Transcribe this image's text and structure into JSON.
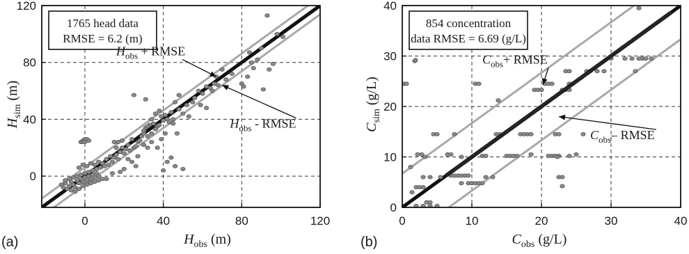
{
  "chart_data": [
    {
      "type": "scatter",
      "panel_label": "(a)",
      "xlabel": {
        "main": "H",
        "sub": "obs",
        "unit": " (m)"
      },
      "ylabel": {
        "main": "H",
        "sub": "sim",
        "unit": "(m)"
      },
      "xlim": [
        -22,
        120
      ],
      "ylim": [
        -22,
        120
      ],
      "xticks": [
        0,
        40,
        80,
        120
      ],
      "yticks": [
        0,
        40,
        80,
        120
      ],
      "grid": true,
      "info_box": [
        "1765 head data",
        "RMSE = 6.2 (m)"
      ],
      "rmse": 6.2,
      "series": [
        {
          "name": "H_obs + RMSE",
          "type": "line",
          "offset": 6.2,
          "color": "#a8a8a8"
        },
        {
          "name": "H_obs",
          "type": "line",
          "offset": 0,
          "color": "#111111"
        },
        {
          "name": "H_obs - RMSE",
          "type": "line",
          "offset": -6.2,
          "color": "#a8a8a8"
        }
      ],
      "annotations": [
        {
          "main": "H",
          "sub": "obs",
          "rest": " + RMSE",
          "text_at": [
            16,
            85
          ],
          "arrow_to": [
            67,
            70
          ]
        },
        {
          "main": "H",
          "sub": "obs",
          "rest": " - RMSE",
          "text_at": [
            74,
            34
          ],
          "arrow_to": [
            70,
            64
          ]
        }
      ],
      "points": [
        [
          -12,
          -6
        ],
        [
          -11,
          -8
        ],
        [
          -10,
          -5
        ],
        [
          -9,
          -9
        ],
        [
          -8,
          -7
        ],
        [
          -7,
          -4
        ],
        [
          -6,
          -6
        ],
        [
          -5,
          -8
        ],
        [
          -4,
          -3
        ],
        [
          -3,
          -5
        ],
        [
          -2,
          -2
        ],
        [
          -1,
          -4
        ],
        [
          0,
          -1
        ],
        [
          1,
          -3
        ],
        [
          2,
          0
        ],
        [
          3,
          -2
        ],
        [
          4,
          1
        ],
        [
          5,
          -1
        ],
        [
          6,
          2
        ],
        [
          7,
          0
        ],
        [
          -10,
          -3
        ],
        [
          -8,
          -2
        ],
        [
          -6,
          -1
        ],
        [
          -4,
          0
        ],
        [
          -2,
          1
        ],
        [
          0,
          2
        ],
        [
          2,
          3
        ],
        [
          4,
          4
        ],
        [
          6,
          5
        ],
        [
          8,
          6
        ],
        [
          10,
          7
        ],
        [
          -7,
          -10
        ],
        [
          -5,
          -11
        ],
        [
          -3,
          -9
        ],
        [
          -1,
          -7
        ],
        [
          1,
          -6
        ],
        [
          3,
          -5
        ],
        [
          5,
          -4
        ],
        [
          7,
          -3
        ],
        [
          9,
          -2
        ],
        [
          -2,
          24
        ],
        [
          -1,
          25
        ],
        [
          0,
          26
        ],
        [
          1,
          25
        ],
        [
          -1,
          24
        ],
        [
          0,
          24
        ],
        [
          1,
          26
        ],
        [
          2,
          25
        ],
        [
          -3,
          6
        ],
        [
          -1,
          8
        ],
        [
          1,
          7
        ],
        [
          3,
          9
        ],
        [
          5,
          8
        ],
        [
          7,
          10
        ],
        [
          9,
          9
        ],
        [
          11,
          12
        ],
        [
          13,
          14
        ],
        [
          15,
          13
        ],
        [
          12,
          8
        ],
        [
          14,
          10
        ],
        [
          16,
          15
        ],
        [
          18,
          17
        ],
        [
          17,
          12
        ],
        [
          19,
          20
        ],
        [
          15,
          24
        ],
        [
          17,
          24
        ],
        [
          19,
          25
        ],
        [
          16,
          20
        ],
        [
          21,
          19
        ],
        [
          22,
          22
        ],
        [
          24,
          26
        ],
        [
          20,
          16
        ],
        [
          23,
          18
        ],
        [
          25,
          20
        ],
        [
          27,
          24
        ],
        [
          26,
          21
        ],
        [
          29,
          28
        ],
        [
          28,
          25
        ],
        [
          30,
          30
        ],
        [
          32,
          28
        ],
        [
          31,
          34
        ],
        [
          33,
          36
        ],
        [
          35,
          37
        ],
        [
          37,
          35
        ],
        [
          34,
          30
        ],
        [
          36,
          33
        ],
        [
          38,
          36
        ],
        [
          40,
          39
        ],
        [
          39,
          42
        ],
        [
          41,
          43
        ],
        [
          42,
          40
        ],
        [
          44,
          45
        ],
        [
          43,
          38
        ],
        [
          45,
          37
        ],
        [
          46,
          52
        ],
        [
          48,
          47
        ],
        [
          30,
          32
        ],
        [
          32,
          35
        ],
        [
          34,
          40
        ],
        [
          36,
          44
        ],
        [
          38,
          46
        ],
        [
          27,
          14
        ],
        [
          30,
          22
        ],
        [
          32,
          20
        ],
        [
          34,
          24
        ],
        [
          22,
          12
        ],
        [
          24,
          10
        ],
        [
          26,
          7
        ],
        [
          20,
          5
        ],
        [
          18,
          3
        ],
        [
          14,
          2
        ],
        [
          11,
          -2
        ],
        [
          40,
          4
        ],
        [
          42,
          10
        ],
        [
          44,
          13
        ],
        [
          46,
          7
        ],
        [
          50,
          5
        ],
        [
          37,
          20
        ],
        [
          39,
          26
        ],
        [
          41,
          30
        ],
        [
          48,
          57
        ],
        [
          52,
          50
        ],
        [
          55,
          52
        ],
        [
          58,
          60
        ],
        [
          60,
          58
        ],
        [
          62,
          63
        ],
        [
          64,
          62
        ],
        [
          66,
          65
        ],
        [
          25,
          57
        ],
        [
          31,
          54
        ],
        [
          45,
          40
        ],
        [
          47,
          30
        ],
        [
          50,
          44
        ],
        [
          53,
          42
        ],
        [
          56,
          55
        ],
        [
          59,
          50
        ],
        [
          62,
          48
        ],
        [
          65,
          60
        ],
        [
          67,
          70
        ],
        [
          70,
          75
        ],
        [
          72,
          68
        ],
        [
          80,
          65
        ],
        [
          81,
          63
        ],
        [
          84,
          87
        ],
        [
          86,
          76
        ],
        [
          88,
          82
        ],
        [
          90,
          90
        ],
        [
          91,
          61
        ],
        [
          93,
          113
        ],
        [
          94,
          75
        ],
        [
          96,
          79
        ],
        [
          98,
          100
        ],
        [
          101,
          98
        ],
        [
          85,
          80
        ],
        [
          83,
          70
        ],
        [
          75,
          72
        ],
        [
          68,
          64
        ]
      ]
    },
    {
      "type": "scatter",
      "panel_label": "(b)",
      "xlabel": {
        "main": "C",
        "sub": "obs",
        "unit": " (g/L)"
      },
      "ylabel": {
        "main": "C",
        "sub": "sim",
        "unit": " (g/L)"
      },
      "xlim": [
        0,
        40
      ],
      "ylim": [
        0,
        40
      ],
      "xticks": [
        0,
        10,
        20,
        30,
        40
      ],
      "yticks": [
        0,
        10,
        20,
        30,
        40
      ],
      "grid": true,
      "info_box": [
        "854 concentration",
        "data RMSE = 6.69 (g/L)"
      ],
      "rmse": 6.69,
      "series": [
        {
          "name": "C_obs + RMSE",
          "type": "line",
          "offset": 6.69,
          "color": "#a8a8a8"
        },
        {
          "name": "C_obs",
          "type": "line",
          "offset": 0,
          "color": "#111111"
        },
        {
          "name": "C_obs - RMSE",
          "type": "line",
          "offset": -6.69,
          "color": "#a8a8a8"
        }
      ],
      "annotations": [
        {
          "main": "C",
          "sub": "obs",
          "rest": "+ RMSE",
          "text_at": [
            11.5,
            28.5
          ],
          "arrow_to": [
            20.2,
            24.3
          ]
        },
        {
          "main": "C",
          "sub": "obs",
          "rest": "– RMSE",
          "text_at": [
            27,
            13.5
          ],
          "arrow_to": [
            22.5,
            18
          ]
        }
      ],
      "points": [
        [
          0.3,
          24.5
        ],
        [
          0.6,
          24.5
        ],
        [
          1.8,
          29
        ],
        [
          1.9,
          29.2
        ],
        [
          1.2,
          8
        ],
        [
          1.4,
          3
        ],
        [
          2,
          4
        ],
        [
          2.5,
          4
        ],
        [
          3,
          4
        ],
        [
          2.2,
          10.5
        ],
        [
          2.8,
          10.5
        ],
        [
          3.3,
          10
        ],
        [
          3,
          6
        ],
        [
          4,
          6
        ],
        [
          4.5,
          14.5
        ],
        [
          5,
          14.5
        ],
        [
          5.5,
          6
        ],
        [
          3.5,
          1
        ],
        [
          4,
          1
        ],
        [
          2,
          0.3
        ],
        [
          3,
          0.3
        ],
        [
          4,
          0.3
        ],
        [
          5,
          0.3
        ],
        [
          6.5,
          10.5
        ],
        [
          7,
          10.5
        ],
        [
          7.5,
          14.5
        ],
        [
          7,
          6.3
        ],
        [
          7.5,
          6.3
        ],
        [
          8,
          6.3
        ],
        [
          8.5,
          6.3
        ],
        [
          9,
          6.3
        ],
        [
          9.5,
          6.3
        ],
        [
          8.5,
          10
        ],
        [
          8.5,
          4.8
        ],
        [
          9.5,
          4.8
        ],
        [
          10,
          4.8
        ],
        [
          10.5,
          4.8
        ],
        [
          11,
          4.8
        ],
        [
          11.5,
          4.8
        ],
        [
          10.5,
          24.5
        ],
        [
          11,
          24.5
        ],
        [
          11.5,
          10.2
        ],
        [
          12,
          10.2
        ],
        [
          12,
          6
        ],
        [
          13,
          6
        ],
        [
          13.5,
          14.5
        ],
        [
          14,
          14.5
        ],
        [
          13.8,
          21.2
        ],
        [
          15,
          10.2
        ],
        [
          15.5,
          10.2
        ],
        [
          16,
          10.2
        ],
        [
          16.5,
          10.2
        ],
        [
          17,
          14.5
        ],
        [
          17.5,
          14.5
        ],
        [
          18,
          14.5
        ],
        [
          18.5,
          14.5
        ],
        [
          18.5,
          10.5
        ],
        [
          19,
          23.3
        ],
        [
          19.5,
          23.3
        ],
        [
          20,
          23.3
        ],
        [
          20.5,
          24.5
        ],
        [
          21,
          24.5
        ],
        [
          21.5,
          24.5
        ],
        [
          21,
          10.2
        ],
        [
          21.5,
          10.2
        ],
        [
          22,
          10.2
        ],
        [
          22.5,
          10.2
        ],
        [
          22,
          14.5
        ],
        [
          22.5,
          14.5
        ],
        [
          23,
          23.3
        ],
        [
          23.5,
          23.3
        ],
        [
          24,
          23.3
        ],
        [
          23.5,
          27
        ],
        [
          24,
          27
        ],
        [
          24,
          24.5
        ],
        [
          24.5,
          24.5
        ],
        [
          22.5,
          6
        ],
        [
          23,
          6
        ],
        [
          22.3,
          10
        ],
        [
          23,
          4.2
        ],
        [
          24,
          10.2
        ],
        [
          25,
          10.5
        ],
        [
          26,
          14.5
        ],
        [
          26.5,
          27
        ],
        [
          27,
          27
        ],
        [
          28,
          27
        ],
        [
          29,
          27
        ],
        [
          30,
          29.5
        ],
        [
          32,
          29.5
        ],
        [
          33,
          29.5
        ],
        [
          33.5,
          27
        ],
        [
          34,
          29.5
        ],
        [
          34.5,
          29.5
        ],
        [
          35,
          29.5
        ],
        [
          35.8,
          29.5
        ],
        [
          34,
          39.5
        ]
      ],
      "dense_segments": [
        {
          "from": 6.5,
          "to": 38.5,
          "count": 130
        }
      ]
    }
  ]
}
